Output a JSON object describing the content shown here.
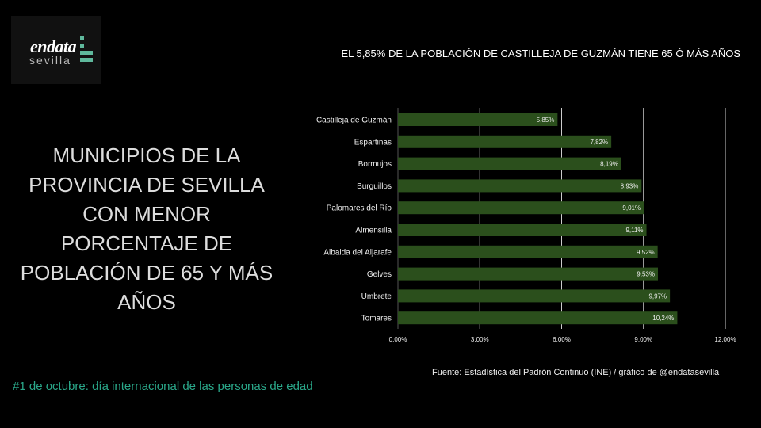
{
  "logo": {
    "line1": "endata",
    "line2": "sevilla"
  },
  "headline": "EL 5,85% DE LA POBLACIÓN DE CASTILLEJA DE GUZMÁN TIENE 65 Ó MÁS AÑOS",
  "title": "MUNICIPIOS DE LA PROVINCIA DE SEVILLA CON MENOR PORCENTAJE DE POBLACIÓN DE 65 Y MÁS AÑOS",
  "footer": "#1 de octubre: día internacional de las personas de edad",
  "source": "Fuente: Estadística del Padrón Continuo (INE) / gráfico de @endatasevilla",
  "colors": {
    "bar": "#2b4f1c",
    "accent": "#2aa88a"
  },
  "chart_data": {
    "type": "bar",
    "orientation": "horizontal",
    "categories": [
      "Castilleja de Guzmán",
      "Espartinas",
      "Bormujos",
      "Burguillos",
      "Palomares del Río",
      "Almensilla",
      "Albaida del Aljarafe",
      "Gelves",
      "Umbrete",
      "Tomares"
    ],
    "values": [
      5.85,
      7.82,
      8.19,
      8.93,
      9.01,
      9.11,
      9.52,
      9.53,
      9.97,
      10.24
    ],
    "labels": [
      "5,85%",
      "7,82%",
      "8,19%",
      "8,93%",
      "9,01%",
      "9,11%",
      "9,52%",
      "9,53%",
      "9,97%",
      "10,24%"
    ],
    "xlim": [
      0,
      12
    ],
    "ticks": [
      0,
      3,
      6,
      9,
      12
    ],
    "tick_labels": [
      "0,00%",
      "3,00%",
      "6,00%",
      "9,00%",
      "12,00%"
    ],
    "grid": true,
    "xlabel": "",
    "ylabel": ""
  }
}
